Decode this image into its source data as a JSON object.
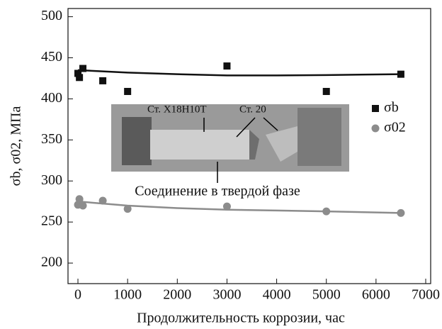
{
  "chart_data": {
    "type": "scatter",
    "x_label": "Продолжительность коррозии, час",
    "y_label": "σb, σ02, МПа",
    "xlim": [
      -200,
      7100
    ],
    "ylim": [
      175,
      510
    ],
    "xticks": [
      0,
      1000,
      2000,
      3000,
      4000,
      5000,
      6000,
      7000
    ],
    "yticks": [
      200,
      250,
      300,
      350,
      400,
      450,
      500
    ],
    "series": [
      {
        "name": "σb",
        "color": "#111111",
        "marker": "square",
        "x": [
          0,
          30,
          100,
          500,
          1000,
          3000,
          5000,
          6500
        ],
        "values": [
          431,
          426,
          437,
          422,
          409,
          440,
          409,
          430
        ]
      },
      {
        "name": "σ02",
        "color": "#8c8c8c",
        "marker": "circle",
        "x": [
          0,
          30,
          100,
          500,
          1000,
          3000,
          5000,
          6500
        ],
        "values": [
          271,
          278,
          270,
          276,
          266,
          269,
          263,
          261
        ]
      }
    ],
    "fits": [
      {
        "color": "#111111",
        "x": [
          0,
          1000,
          2000,
          3000,
          4000,
          5000,
          6500
        ],
        "values": [
          435,
          432,
          430,
          428.5,
          428.5,
          429,
          430
        ]
      },
      {
        "color": "#8c8c8c",
        "x": [
          0,
          1000,
          2000,
          3000,
          4000,
          5000,
          6500
        ],
        "values": [
          275,
          270,
          267,
          265,
          264,
          263,
          261
        ]
      }
    ],
    "legend": "right",
    "inset": {
      "label_left": "Ст. Х18Н10Т",
      "label_right": "Ст. 20",
      "caption": "Соединение в твердой фазе"
    }
  }
}
